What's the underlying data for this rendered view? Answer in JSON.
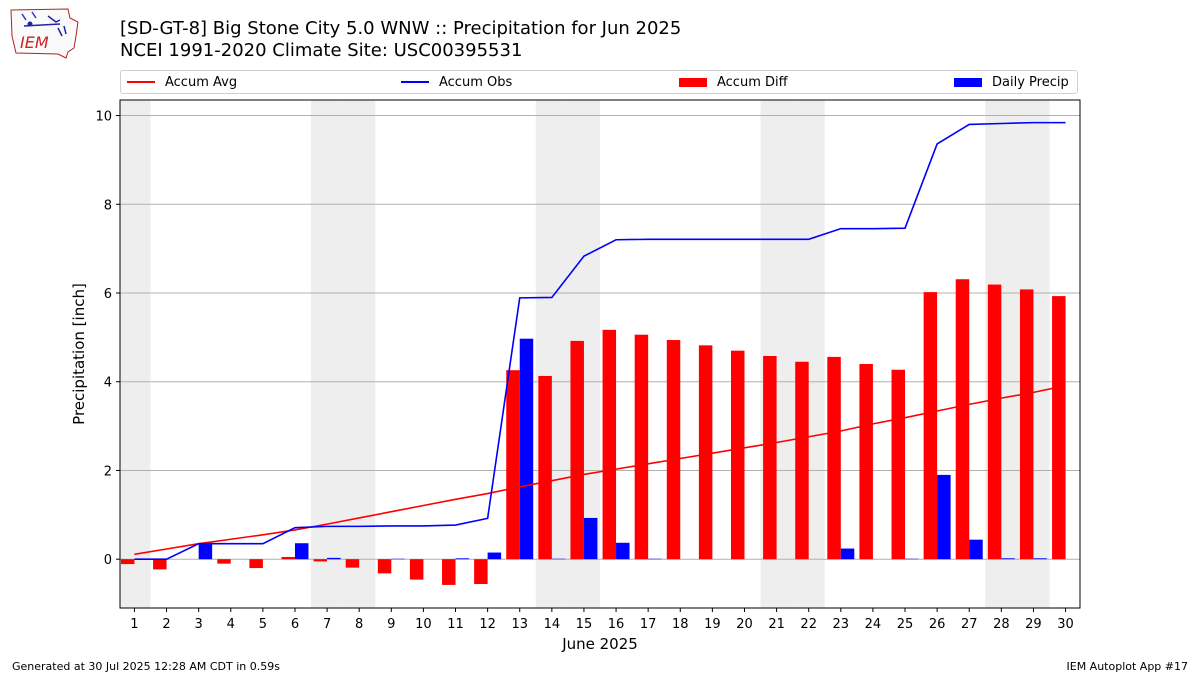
{
  "header": {
    "title_line1": "[SD-GT-8] Big Stone City 5.0 WNW :: Precipitation for Jun 2025",
    "title_line2": "NCEI 1991-2020 Climate Site: USC00395531",
    "logo_text": "IEM"
  },
  "footer": {
    "generated": "Generated at 30 Jul 2025 12:28 AM CDT in 0.59s",
    "app": "IEM Autoplot App #17"
  },
  "colors": {
    "accum_avg": "#ff0000",
    "accum_obs": "#0000ff",
    "accum_diff": "#ff0000",
    "daily_precip": "#0000ff",
    "weekend_shade": "#eeeeee",
    "grid": "#b0b0b0"
  },
  "chart_data": {
    "type": "bar",
    "xlabel": "June 2025",
    "ylabel": "Precipitation [inch]",
    "ylim": [
      -1.1,
      10.35
    ],
    "yticks": [
      0,
      2,
      4,
      6,
      8,
      10
    ],
    "grid": "horizontal",
    "legend_placement": "top",
    "days": [
      1,
      2,
      3,
      4,
      5,
      6,
      7,
      8,
      9,
      10,
      11,
      12,
      13,
      14,
      15,
      16,
      17,
      18,
      19,
      20,
      21,
      22,
      23,
      24,
      25,
      26,
      27,
      28,
      29,
      30
    ],
    "weekend_days": [
      1,
      7,
      8,
      14,
      15,
      21,
      22,
      28,
      29
    ],
    "series": [
      {
        "name": "Accum Avg",
        "kind": "line",
        "values": [
          0.11,
          0.23,
          0.35,
          0.45,
          0.55,
          0.66,
          0.79,
          0.93,
          1.07,
          1.21,
          1.35,
          1.48,
          1.63,
          1.77,
          1.91,
          2.03,
          2.15,
          2.27,
          2.39,
          2.51,
          2.63,
          2.76,
          2.89,
          3.05,
          3.19,
          3.34,
          3.49,
          3.63,
          3.76,
          3.91
        ]
      },
      {
        "name": "Accum Obs",
        "kind": "line",
        "values": [
          0.0,
          0.0,
          0.35,
          0.35,
          0.35,
          0.71,
          0.74,
          0.74,
          0.75,
          0.75,
          0.77,
          0.92,
          5.89,
          5.9,
          6.83,
          7.2,
          7.21,
          7.21,
          7.21,
          7.21,
          7.21,
          7.21,
          7.45,
          7.45,
          7.46,
          9.36,
          9.8,
          9.82,
          9.84,
          9.84
        ]
      },
      {
        "name": "Accum Diff",
        "kind": "bar",
        "values": [
          -0.11,
          -0.23,
          0.0,
          -0.1,
          -0.2,
          0.05,
          -0.05,
          -0.19,
          -0.32,
          -0.46,
          -0.58,
          -0.56,
          4.26,
          4.13,
          4.92,
          5.17,
          5.06,
          4.94,
          4.82,
          4.7,
          4.58,
          4.45,
          4.56,
          4.4,
          4.27,
          6.02,
          6.31,
          6.19,
          6.08,
          5.93
        ]
      },
      {
        "name": "Daily Precip",
        "kind": "bar",
        "values": [
          0.0,
          0.0,
          0.35,
          0.0,
          0.0,
          0.36,
          0.03,
          0.0,
          0.01,
          0.0,
          0.02,
          0.15,
          4.97,
          0.01,
          0.93,
          0.37,
          0.01,
          0.0,
          0.0,
          0.0,
          0.0,
          0.0,
          0.24,
          0.0,
          0.01,
          1.9,
          0.44,
          0.02,
          0.02,
          0.0
        ]
      }
    ]
  }
}
